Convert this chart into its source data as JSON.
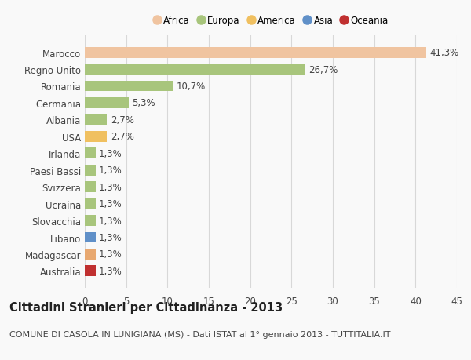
{
  "categories": [
    "Marocco",
    "Regno Unito",
    "Romania",
    "Germania",
    "Albania",
    "USA",
    "Irlanda",
    "Paesi Bassi",
    "Svizzera",
    "Ucraina",
    "Slovacchia",
    "Libano",
    "Madagascar",
    "Australia"
  ],
  "values": [
    41.3,
    26.7,
    10.7,
    5.3,
    2.7,
    2.7,
    1.3,
    1.3,
    1.3,
    1.3,
    1.3,
    1.3,
    1.3,
    1.3
  ],
  "bar_colors": [
    "#f0c4a0",
    "#a8c57c",
    "#a8c57c",
    "#a8c57c",
    "#a8c57c",
    "#f0c060",
    "#a8c57c",
    "#a8c57c",
    "#a8c57c",
    "#a8c57c",
    "#a8c57c",
    "#6090c8",
    "#e8a870",
    "#c03030"
  ],
  "labels": [
    "41,3%",
    "26,7%",
    "10,7%",
    "5,3%",
    "2,7%",
    "2,7%",
    "1,3%",
    "1,3%",
    "1,3%",
    "1,3%",
    "1,3%",
    "1,3%",
    "1,3%",
    "1,3%"
  ],
  "legend_items": [
    {
      "label": "Africa",
      "color": "#f0c4a0"
    },
    {
      "label": "Europa",
      "color": "#a8c57c"
    },
    {
      "label": "America",
      "color": "#f0c060"
    },
    {
      "label": "Asia",
      "color": "#6090c8"
    },
    {
      "label": "Oceania",
      "color": "#c03030"
    }
  ],
  "title": "Cittadini Stranieri per Cittadinanza - 2013",
  "subtitle": "COMUNE DI CASOLA IN LUNIGIANA (MS) - Dati ISTAT al 1° gennaio 2013 - TUTTITALIA.IT",
  "xlim": [
    0,
    45
  ],
  "xticks": [
    0,
    5,
    10,
    15,
    20,
    25,
    30,
    35,
    40,
    45
  ],
  "background_color": "#f9f9f9",
  "bar_height": 0.65,
  "grid_color": "#d8d8d8",
  "text_color": "#444444",
  "label_fontsize": 8.5,
  "tick_fontsize": 8.5,
  "title_fontsize": 10.5,
  "subtitle_fontsize": 8.0
}
